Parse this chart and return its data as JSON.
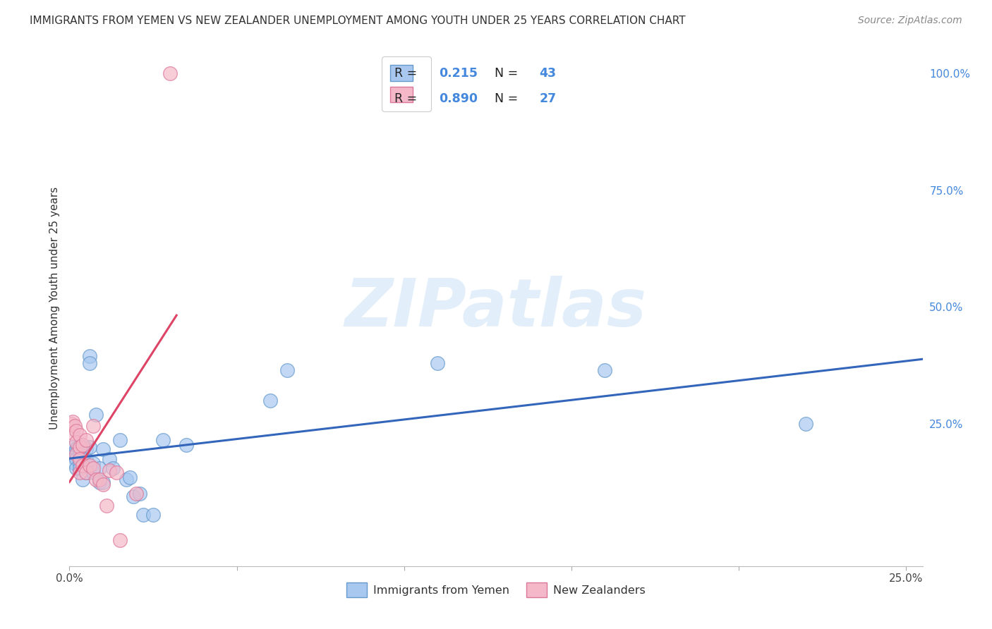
{
  "title": "IMMIGRANTS FROM YEMEN VS NEW ZEALANDER UNEMPLOYMENT AMONG YOUTH UNDER 25 YEARS CORRELATION CHART",
  "source": "Source: ZipAtlas.com",
  "ylabel": "Unemployment Among Youth under 25 years",
  "legend_entry1": {
    "label": "Immigrants from Yemen",
    "R": 0.215,
    "N": 43
  },
  "legend_entry2": {
    "label": "New Zealanders",
    "R": 0.89,
    "N": 27
  },
  "xlim": [
    0.0,
    0.255
  ],
  "ylim": [
    -0.055,
    1.05
  ],
  "watermark": "ZIPatlas",
  "blue_scatter_x": [
    0.0005,
    0.001,
    0.0015,
    0.002,
    0.002,
    0.002,
    0.0025,
    0.003,
    0.003,
    0.003,
    0.003,
    0.004,
    0.004,
    0.004,
    0.005,
    0.005,
    0.005,
    0.006,
    0.006,
    0.006,
    0.007,
    0.007,
    0.008,
    0.009,
    0.009,
    0.01,
    0.01,
    0.012,
    0.013,
    0.015,
    0.017,
    0.018,
    0.019,
    0.021,
    0.022,
    0.025,
    0.028,
    0.035,
    0.06,
    0.065,
    0.11,
    0.16,
    0.22
  ],
  "blue_scatter_y": [
    0.185,
    0.2,
    0.165,
    0.195,
    0.175,
    0.155,
    0.2,
    0.195,
    0.185,
    0.165,
    0.155,
    0.2,
    0.185,
    0.13,
    0.195,
    0.175,
    0.145,
    0.395,
    0.38,
    0.2,
    0.165,
    0.145,
    0.27,
    0.155,
    0.125,
    0.195,
    0.125,
    0.175,
    0.155,
    0.215,
    0.13,
    0.135,
    0.095,
    0.1,
    0.055,
    0.055,
    0.215,
    0.205,
    0.3,
    0.365,
    0.38,
    0.365,
    0.25
  ],
  "pink_scatter_x": [
    0.0005,
    0.001,
    0.001,
    0.0015,
    0.002,
    0.002,
    0.002,
    0.003,
    0.003,
    0.003,
    0.003,
    0.004,
    0.004,
    0.005,
    0.005,
    0.006,
    0.007,
    0.007,
    0.008,
    0.009,
    0.01,
    0.011,
    0.012,
    0.014,
    0.015,
    0.02,
    0.03
  ],
  "pink_scatter_y": [
    0.25,
    0.255,
    0.23,
    0.245,
    0.235,
    0.21,
    0.185,
    0.225,
    0.2,
    0.175,
    0.145,
    0.205,
    0.16,
    0.215,
    0.145,
    0.16,
    0.245,
    0.155,
    0.13,
    0.13,
    0.12,
    0.075,
    0.15,
    0.145,
    0.0,
    0.1,
    1.0
  ],
  "bg_color": "#ffffff",
  "grid_color": "#cccccc",
  "blue_color": "#a8c8f0",
  "blue_edge": "#6699cc",
  "pink_color": "#f4b8c8",
  "pink_edge": "#dd7799",
  "blue_line_color": "#3366bb",
  "pink_line_color": "#dd4466"
}
